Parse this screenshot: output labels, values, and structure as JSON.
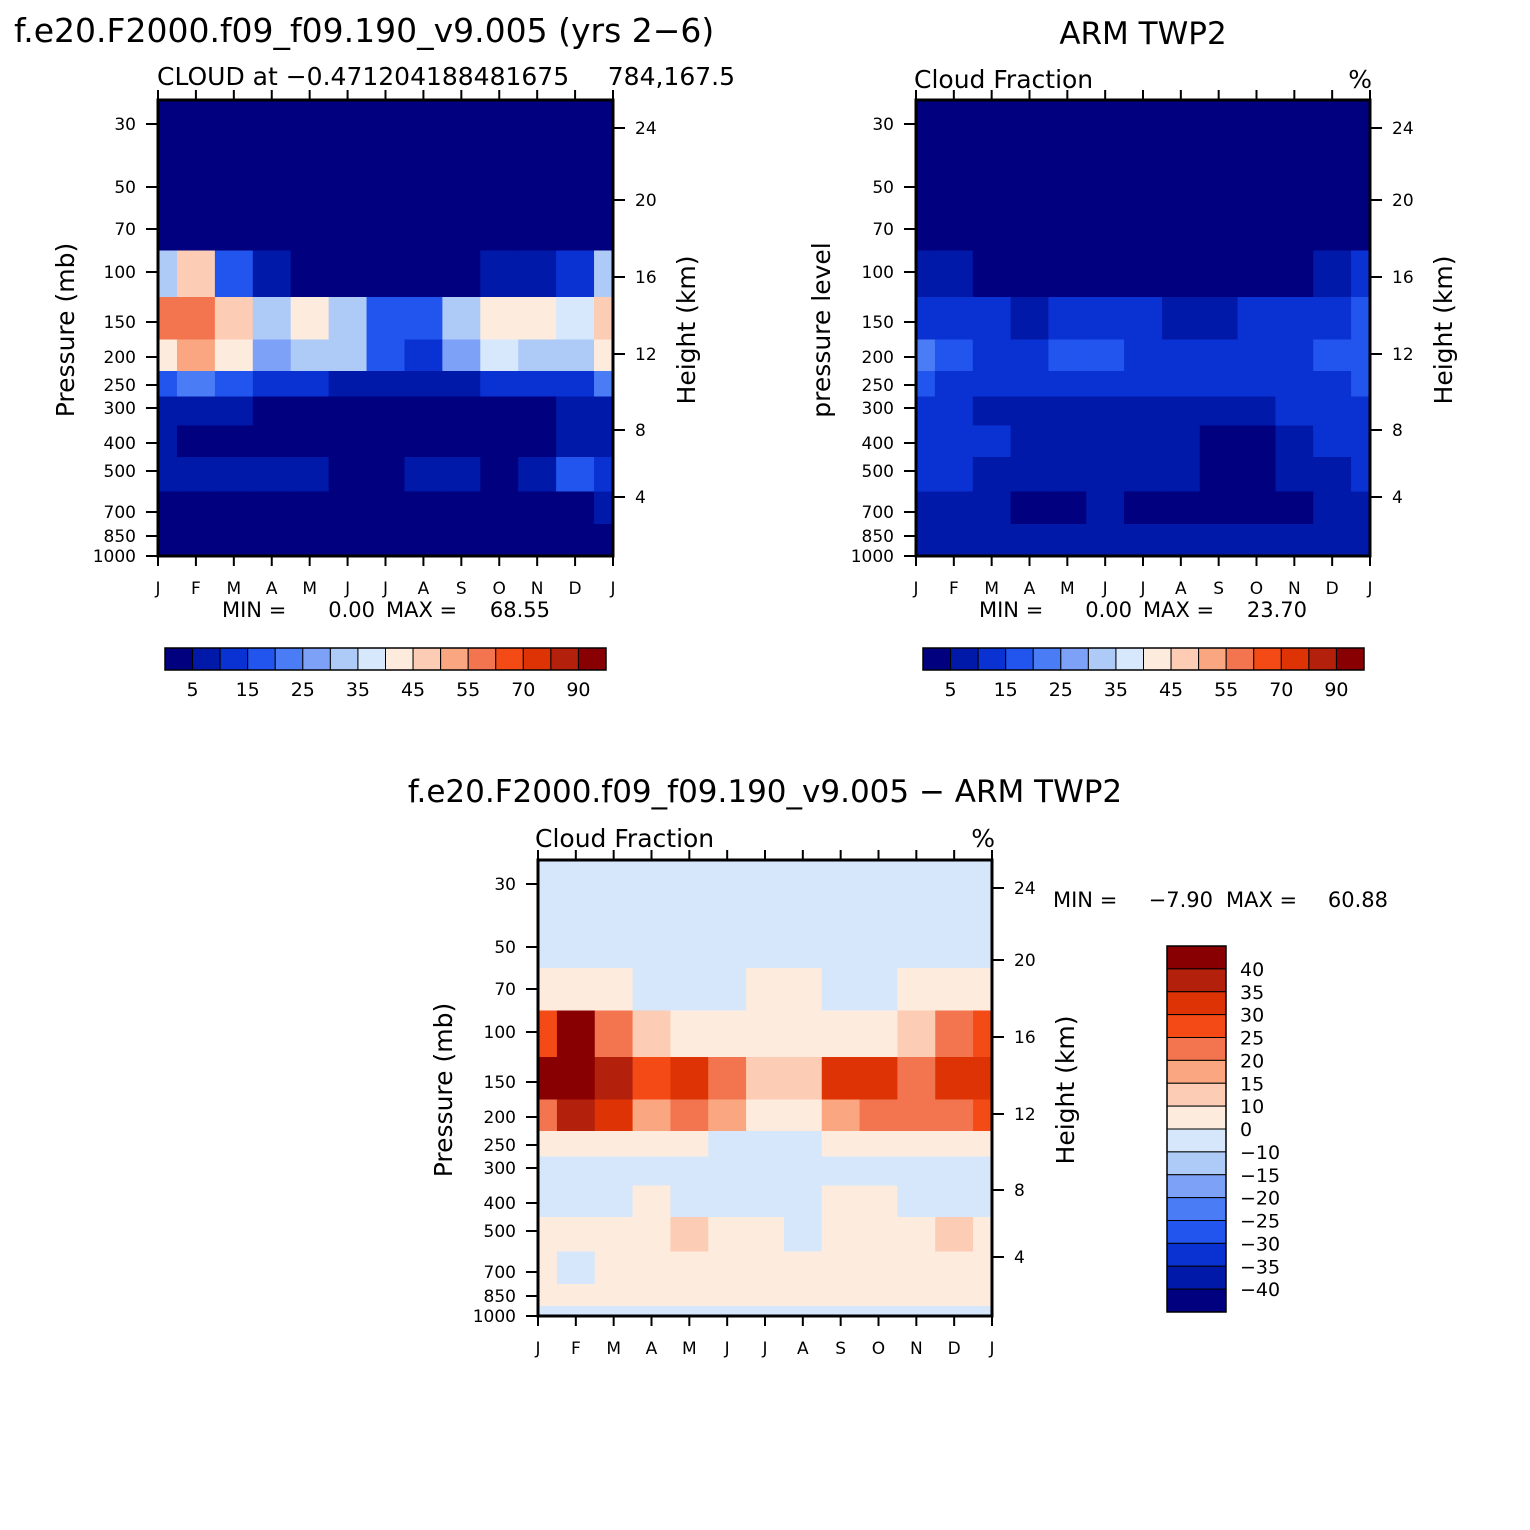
{
  "chart_data": [
    {
      "type": "heatmap",
      "panel": "model",
      "main_title": "f.e20.F2000.f09_f09.190_v9.005 (yrs 2−6)",
      "left_label": "CLOUD at −0.471204188481675",
      "right_label": "784,167.5",
      "units": "%",
      "ylabel_left": "Pressure (mb)",
      "ylabel_right": "Height (km)",
      "x": [
        "J",
        "F",
        "M",
        "A",
        "M",
        "J",
        "J",
        "A",
        "S",
        "O",
        "N",
        "D",
        "J"
      ],
      "pressure_ticks": [
        "30",
        "50",
        "70",
        "100",
        "150",
        "200",
        "250",
        "300",
        "400",
        "500",
        "700",
        "850",
        "1000"
      ],
      "height_ticks": [
        "4",
        "8",
        "12",
        "16",
        "20",
        "24"
      ],
      "ylim_mb": [
        1000,
        25
      ],
      "stats": {
        "min_label": "MIN =",
        "min": "0.00",
        "max_label": "MAX =",
        "max": "68.55"
      },
      "colorbar_labels": [
        "5",
        "15",
        "25",
        "35",
        "45",
        "55",
        "70",
        "90"
      ],
      "grid": [
        [
          0,
          0,
          0,
          0,
          0,
          0,
          0,
          0,
          0,
          0,
          0,
          0,
          0
        ],
        [
          0,
          0,
          0,
          0,
          0,
          0,
          0,
          0,
          0,
          0,
          0,
          0,
          0
        ],
        [
          2,
          3,
          1,
          1,
          1,
          0,
          1,
          0,
          1,
          1,
          1,
          1,
          2
        ],
        [
          30,
          48,
          18,
          6,
          4,
          3,
          3,
          2,
          4,
          5,
          6,
          10,
          32
        ],
        [
          55,
          62,
          45,
          30,
          40,
          34,
          18,
          15,
          32,
          44,
          42,
          36,
          48
        ],
        [
          42,
          52,
          40,
          28,
          34,
          30,
          16,
          14,
          28,
          36,
          34,
          32,
          40
        ],
        [
          18,
          22,
          18,
          12,
          10,
          8,
          8,
          7,
          9,
          10,
          10,
          14,
          20
        ],
        [
          6,
          6,
          5,
          4,
          3,
          3,
          4,
          3,
          3,
          3,
          4,
          5,
          7
        ],
        [
          5,
          4,
          4,
          3,
          2,
          2,
          2,
          1,
          1,
          2,
          3,
          5,
          7
        ],
        [
          6,
          6,
          8,
          6,
          5,
          4,
          4,
          5,
          5,
          4,
          8,
          16,
          12
        ],
        [
          4,
          4,
          3,
          3,
          3,
          3,
          3,
          3,
          3,
          3,
          3,
          4,
          5
        ],
        [
          3,
          3,
          3,
          2,
          2,
          2,
          2,
          2,
          2,
          2,
          2,
          3,
          3
        ],
        [
          2,
          2,
          2,
          2,
          2,
          2,
          2,
          2,
          2,
          2,
          2,
          2,
          2
        ]
      ]
    },
    {
      "type": "heatmap",
      "panel": "obs",
      "main_title": "ARM TWP2",
      "left_label": "Cloud Fraction",
      "right_label": "%",
      "ylabel_left": "pressure level",
      "ylabel_right": "Height (km)",
      "x": [
        "J",
        "F",
        "M",
        "A",
        "M",
        "J",
        "J",
        "A",
        "S",
        "O",
        "N",
        "D",
        "J"
      ],
      "pressure_ticks": [
        "30",
        "50",
        "70",
        "100",
        "150",
        "200",
        "250",
        "300",
        "400",
        "500",
        "700",
        "850",
        "1000"
      ],
      "height_ticks": [
        "4",
        "8",
        "12",
        "16",
        "20",
        "24"
      ],
      "ylim_mb": [
        1000,
        25
      ],
      "stats": {
        "min_label": "MIN =",
        "min": "0.00",
        "max_label": "MAX =",
        "max": "23.70"
      },
      "colorbar_labels": [
        "5",
        "15",
        "25",
        "35",
        "45",
        "55",
        "70",
        "90"
      ],
      "grid": [
        [
          0,
          0,
          0,
          0,
          0,
          0,
          0,
          0,
          0,
          0,
          0,
          0,
          0
        ],
        [
          0,
          0,
          0,
          0,
          0,
          0,
          0,
          0,
          0,
          0,
          0,
          0,
          0
        ],
        [
          0,
          0,
          0,
          0,
          0,
          0,
          0,
          0,
          0,
          0,
          0,
          0,
          0
        ],
        [
          8,
          6,
          4,
          3,
          2,
          2,
          2,
          2,
          2,
          3,
          4,
          6,
          10
        ],
        [
          14,
          13,
          11,
          9,
          10,
          11,
          10,
          9,
          6,
          10,
          12,
          14,
          16
        ],
        [
          20,
          18,
          14,
          12,
          15,
          16,
          14,
          12,
          10,
          12,
          14,
          16,
          18
        ],
        [
          16,
          14,
          13,
          11,
          12,
          12,
          12,
          11,
          10,
          11,
          13,
          14,
          15
        ],
        [
          14,
          12,
          9,
          8,
          7,
          7,
          8,
          7,
          6,
          8,
          11,
          12,
          13
        ],
        [
          13,
          11,
          10,
          8,
          7,
          7,
          6,
          5,
          2,
          4,
          8,
          11,
          12
        ],
        [
          12,
          10,
          8,
          6,
          6,
          6,
          5,
          5,
          2,
          3,
          6,
          9,
          10
        ],
        [
          6,
          6,
          5,
          4,
          3,
          5,
          3,
          4,
          2,
          2,
          4,
          5,
          6
        ],
        [
          6,
          6,
          5,
          5,
          5,
          5,
          5,
          5,
          5,
          5,
          5,
          6,
          6
        ],
        [
          5,
          5,
          5,
          5,
          5,
          5,
          5,
          5,
          5,
          5,
          5,
          5,
          5
        ]
      ]
    },
    {
      "type": "heatmap",
      "panel": "difference",
      "main_title": "f.e20.F2000.f09_f09.190_v9.005 − ARM TWP2",
      "left_label": "Cloud Fraction",
      "right_label": "%",
      "ylabel_left": "Pressure (mb)",
      "ylabel_right": "Height (km)",
      "x": [
        "J",
        "F",
        "M",
        "A",
        "M",
        "J",
        "J",
        "A",
        "S",
        "O",
        "N",
        "D",
        "J"
      ],
      "pressure_ticks": [
        "30",
        "50",
        "70",
        "100",
        "150",
        "200",
        "250",
        "300",
        "400",
        "500",
        "700",
        "850",
        "1000"
      ],
      "height_ticks": [
        "4",
        "8",
        "12",
        "16",
        "20",
        "24"
      ],
      "ylim_mb": [
        1000,
        25
      ],
      "stats": {
        "min_label": "MIN =",
        "min": "−7.90",
        "max_label": "MAX =",
        "max": "60.88"
      },
      "colorbar_labels": [
        "40",
        "35",
        "30",
        "25",
        "20",
        "15",
        "10",
        "0",
        "−10",
        "−15",
        "−20",
        "−25",
        "−30",
        "−35",
        "−40"
      ],
      "grid": [
        [
          -2,
          -2,
          -2,
          -2,
          -2,
          -2,
          -2,
          -2,
          -2,
          -2,
          -2,
          -2,
          -2
        ],
        [
          -2,
          -2,
          -2,
          -2,
          -2,
          -2,
          -2,
          -2,
          -2,
          -2,
          -2,
          -2,
          -2
        ],
        [
          4,
          4,
          3,
          -2,
          -2,
          -2,
          4,
          3,
          -2,
          -2,
          3,
          4,
          5
        ],
        [
          28,
          44,
          22,
          10,
          8,
          6,
          6,
          5,
          8,
          8,
          10,
          22,
          26
        ],
        [
          42,
          56,
          38,
          26,
          34,
          20,
          10,
          10,
          30,
          30,
          24,
          34,
          34
        ],
        [
          24,
          36,
          30,
          18,
          24,
          16,
          6,
          5,
          18,
          22,
          20,
          20,
          26
        ],
        [
          4,
          6,
          5,
          2,
          1,
          -2,
          -2,
          -2,
          1,
          1,
          2,
          4,
          4
        ],
        [
          -2,
          -2,
          -2,
          -2,
          -2,
          -2,
          -3,
          -3,
          -2,
          -2,
          -2,
          -2,
          -2
        ],
        [
          -2,
          -2,
          -2,
          2,
          -2,
          -2,
          -2,
          -2,
          2,
          2,
          -2,
          -2,
          -2
        ],
        [
          4,
          3,
          4,
          6,
          11,
          5,
          4,
          -2,
          6,
          4,
          5,
          12,
          8
        ],
        [
          4,
          -2,
          4,
          4,
          4,
          4,
          4,
          4,
          4,
          4,
          4,
          4,
          4
        ],
        [
          3,
          3,
          3,
          3,
          3,
          3,
          3,
          3,
          3,
          3,
          3,
          3,
          3
        ],
        [
          -2,
          -2,
          -2,
          -2,
          -2,
          -2,
          -2,
          -2,
          -2,
          -2,
          -2,
          -2,
          -2
        ]
      ]
    }
  ],
  "colors": {
    "abs_palette": [
      "#01007F",
      "#0119A8",
      "#0A32D3",
      "#2155EE",
      "#4A7DF5",
      "#7DA1F7",
      "#AECBF7",
      "#D7E8FC",
      "#FDEBDD",
      "#FCCDB4",
      "#F9A681",
      "#F37550",
      "#F44A16",
      "#DE3305",
      "#B3200B",
      "#880001"
    ],
    "diff_palette": [
      "#01007F",
      "#0119A8",
      "#0A32D3",
      "#2155EE",
      "#4A7DF5",
      "#7DA1F7",
      "#AECBF7",
      "#D6E7FC",
      "#FDEBDD",
      "#FCCDB4",
      "#F9A681",
      "#F37550",
      "#F44A16",
      "#DE3305",
      "#B3200B",
      "#880001"
    ]
  }
}
